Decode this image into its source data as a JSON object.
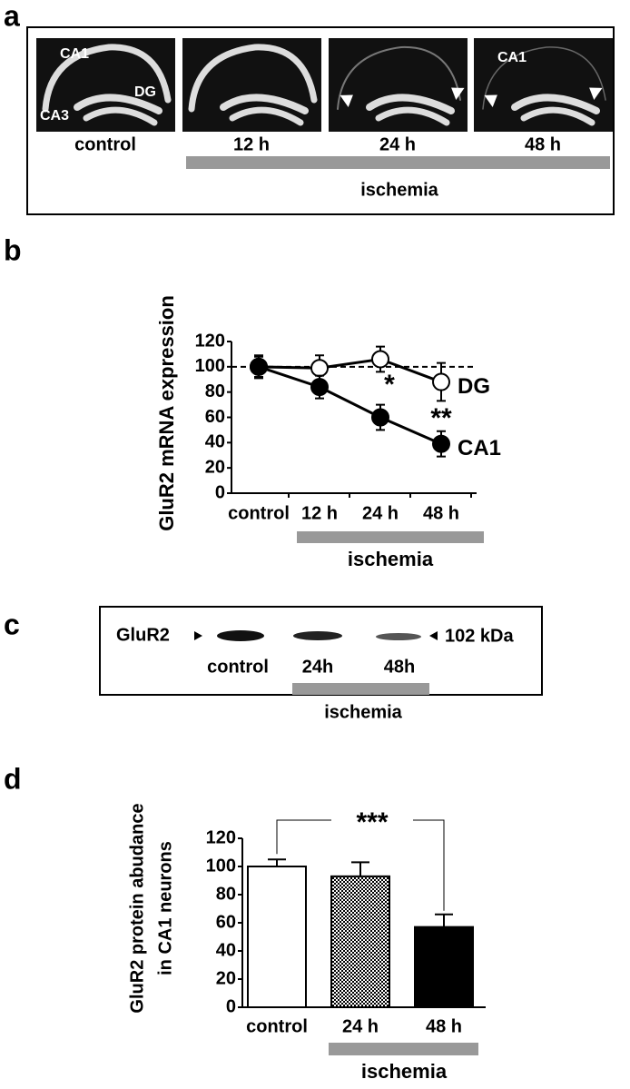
{
  "panel_labels": [
    "a",
    "b",
    "c",
    "d"
  ],
  "panel_a": {
    "region_labels": [
      "CA1",
      "DG",
      "CA3",
      "CA1"
    ],
    "conditions": [
      "control",
      "12 h",
      "24 h",
      "48 h"
    ],
    "group_label": "ischemia"
  },
  "chart_data": [
    {
      "type": "line",
      "y_label": "GluR2 mRNA expression",
      "categories": [
        "control",
        "12 h",
        "24 h",
        "48 h"
      ],
      "ylim": [
        0,
        120
      ],
      "yticks": [
        0,
        20,
        40,
        60,
        80,
        100,
        120
      ],
      "reference_line": 100,
      "series": [
        {
          "name": "DG",
          "color": "#000000",
          "marker_fill": "#ffffff",
          "values": [
            100,
            99,
            106,
            88
          ],
          "errors": [
            8,
            10,
            10,
            15
          ]
        },
        {
          "name": "CA1",
          "color": "#000000",
          "marker_fill": "#000000",
          "values": [
            100,
            84,
            60,
            39
          ],
          "errors": [
            9,
            9,
            10,
            10
          ]
        }
      ],
      "annotations": [
        "*",
        "**"
      ],
      "group_label": "ischemia"
    },
    {
      "type": "bar",
      "y_label": [
        "GluR2 protein abudance",
        "in CA1 neurons"
      ],
      "categories": [
        "control",
        "24 h",
        "48 h"
      ],
      "values": [
        100,
        93,
        57
      ],
      "errors": [
        5,
        10,
        9
      ],
      "colors": [
        "#ffffff",
        "#888888",
        "#000000"
      ],
      "patterns": [
        "solid",
        "checkered",
        "solid"
      ],
      "ylim": [
        0,
        120
      ],
      "yticks": [
        0,
        20,
        40,
        60,
        80,
        100,
        120
      ],
      "significance": "***",
      "group_label": "ischemia"
    }
  ],
  "panel_c": {
    "protein": "GluR2",
    "size_label": "102 kDa",
    "lanes": [
      "control",
      "24h",
      "48h"
    ],
    "group_label": "ischemia"
  }
}
